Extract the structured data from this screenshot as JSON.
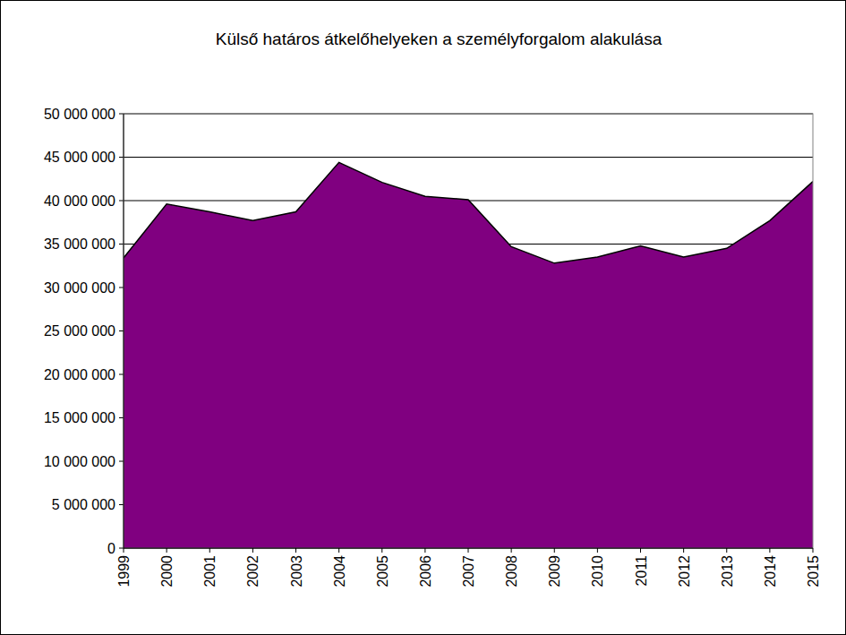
{
  "chart_data": {
    "type": "area",
    "title": "Külső határos átkelőhelyeken a személyforgalom alakulása",
    "categories": [
      "1999",
      "2000",
      "2001",
      "2002",
      "2003",
      "2004",
      "2005",
      "2006",
      "2007",
      "2008",
      "2009",
      "2010",
      "2011",
      "2012",
      "2013",
      "2014",
      "2015"
    ],
    "values": [
      33400000,
      39600000,
      38700000,
      37700000,
      38700000,
      44400000,
      42100000,
      40500000,
      40100000,
      34700000,
      32800000,
      33500000,
      34800000,
      33500000,
      34500000,
      37700000,
      42200000
    ],
    "color": "#800080",
    "ylim": [
      0,
      50000000
    ],
    "yticks": [
      0,
      {
        "value": 5000000,
        "label": "5 000 000"
      },
      {
        "value": 10000000,
        "label": "10 000 000"
      },
      {
        "value": 15000000,
        "label": "15 000 000"
      },
      {
        "value": 20000000,
        "label": "20 000 000"
      },
      {
        "value": 25000000,
        "label": "25 000 000"
      },
      {
        "value": 30000000,
        "label": "30 000 000"
      },
      {
        "value": 35000000,
        "label": "35 000 000"
      },
      {
        "value": 40000000,
        "label": "40 000 000"
      },
      {
        "value": 45000000,
        "label": "45 000 000"
      },
      {
        "value": 50000000,
        "label": "50 000 000"
      }
    ],
    "grid": true
  }
}
